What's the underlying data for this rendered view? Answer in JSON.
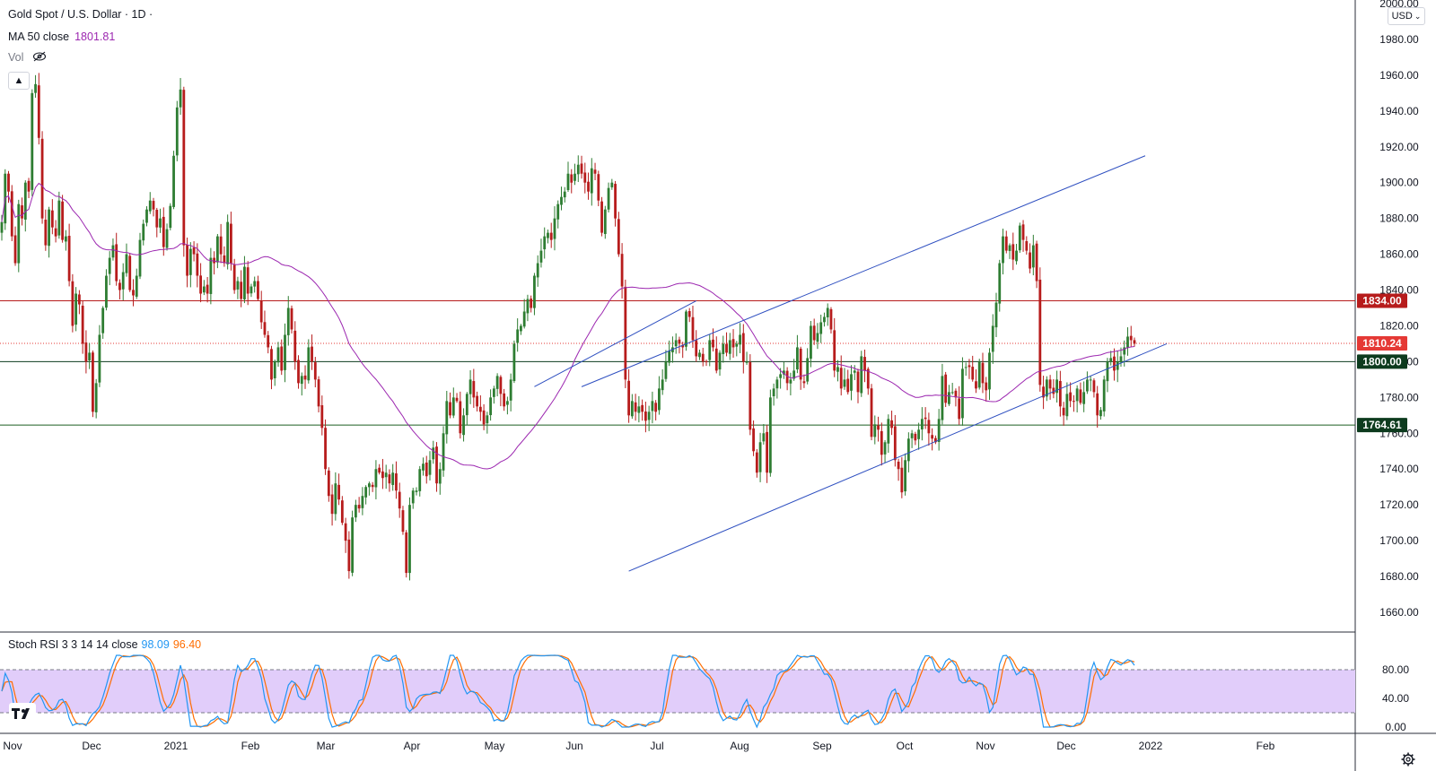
{
  "header": {
    "symbol_title": "Gold Spot / U.S. Dollar · 1D ·",
    "ma_label": "MA 50 close",
    "ma_value": "1801.81",
    "vol_label": "Vol",
    "collapse_icon": "chevron-up-icon",
    "hide_icon": "eye-crossed-icon"
  },
  "price_axis": {
    "currency": "USD",
    "ticks": [
      "2000.00",
      "1980.00",
      "1960.00",
      "1940.00",
      "1920.00",
      "1900.00",
      "1880.00",
      "1860.00",
      "1840.00",
      "1820.00",
      "1800.00",
      "1780.00",
      "1760.00",
      "1740.00",
      "1720.00",
      "1700.00",
      "1680.00",
      "1660.00"
    ],
    "badges": [
      {
        "label": "1834.00",
        "bg": "#b71c1c",
        "fg": "#ffffff"
      },
      {
        "label": "1810.24",
        "bg": "#e53935",
        "fg": "#ffffff"
      },
      {
        "label": "1800.00",
        "bg": "#0d3b1e",
        "fg": "#ffffff"
      },
      {
        "label": "1764.61",
        "bg": "#0d3b1e",
        "fg": "#ffffff"
      }
    ]
  },
  "time_axis": {
    "labels": [
      "Nov",
      "Dec",
      "2021",
      "Feb",
      "Mar",
      "Apr",
      "May",
      "Jun",
      "Jul",
      "Aug",
      "Sep",
      "Oct",
      "Nov",
      "Dec",
      "2022",
      "Feb"
    ]
  },
  "stoch_rsi": {
    "label": "Stoch RSI 3 3 14 14 close",
    "k_value": "98.09",
    "d_value": "96.40",
    "ticks": [
      "80.00",
      "40.00",
      "0.00"
    ],
    "k_color": "#2196f3",
    "d_color": "#ff6d00",
    "band_upper": 80,
    "band_lower": 20
  },
  "chart_data": {
    "type": "candlestick",
    "title": "Gold Spot / U.S. Dollar · 1D ·",
    "ylim": [
      1650,
      2000
    ],
    "up_color": "#2e7d32",
    "down_color": "#b71c1c",
    "ma_color": "#9c27b0",
    "trendline_color": "#2e4fc0",
    "closes": [
      1878,
      1905,
      1895,
      1870,
      1855,
      1888,
      1880,
      1900,
      1895,
      1950,
      1955,
      1925,
      1880,
      1865,
      1885,
      1875,
      1870,
      1890,
      1868,
      1870,
      1845,
      1820,
      1838,
      1832,
      1810,
      1800,
      1805,
      1772,
      1788,
      1815,
      1830,
      1848,
      1858,
      1865,
      1845,
      1840,
      1850,
      1860,
      1840,
      1837,
      1848,
      1868,
      1877,
      1885,
      1890,
      1885,
      1875,
      1880,
      1864,
      1874,
      1887,
      1915,
      1942,
      1952,
      1865,
      1848,
      1863,
      1860,
      1848,
      1838,
      1842,
      1838,
      1858,
      1855,
      1870,
      1860,
      1855,
      1878,
      1855,
      1840,
      1845,
      1835,
      1853,
      1838,
      1842,
      1845,
      1835,
      1822,
      1815,
      1808,
      1790,
      1800,
      1808,
      1795,
      1815,
      1830,
      1818,
      1800,
      1788,
      1792,
      1790,
      1808,
      1800,
      1790,
      1775,
      1763,
      1740,
      1725,
      1715,
      1732,
      1723,
      1710,
      1700,
      1683,
      1713,
      1720,
      1718,
      1725,
      1730,
      1732,
      1730,
      1740,
      1738,
      1735,
      1738,
      1732,
      1738,
      1728,
      1718,
      1705,
      1682,
      1720,
      1728,
      1728,
      1740,
      1743,
      1736,
      1745,
      1752,
      1732,
      1740,
      1760,
      1778,
      1770,
      1780,
      1778,
      1760,
      1770,
      1782,
      1790,
      1780,
      1775,
      1772,
      1765,
      1770,
      1780,
      1785,
      1792,
      1782,
      1775,
      1778,
      1790,
      1810,
      1818,
      1820,
      1828,
      1835,
      1830,
      1848,
      1855,
      1862,
      1870,
      1872,
      1868,
      1880,
      1888,
      1892,
      1895,
      1905,
      1900,
      1905,
      1910,
      1905,
      1900,
      1895,
      1908,
      1905,
      1890,
      1872,
      1885,
      1897,
      1900,
      1880,
      1860,
      1842,
      1790,
      1770,
      1778,
      1772,
      1775,
      1772,
      1767,
      1772,
      1778,
      1772,
      1785,
      1790,
      1800,
      1806,
      1808,
      1812,
      1810,
      1808,
      1828,
      1825,
      1812,
      1803,
      1805,
      1800,
      1800,
      1812,
      1808,
      1795,
      1805,
      1810,
      1805,
      1812,
      1808,
      1810,
      1815,
      1800,
      1800,
      1762,
      1750,
      1738,
      1755,
      1760,
      1738,
      1780,
      1785,
      1790,
      1793,
      1795,
      1788,
      1790,
      1795,
      1808,
      1790,
      1788,
      1802,
      1820,
      1812,
      1816,
      1822,
      1825,
      1830,
      1818,
      1795,
      1797,
      1785,
      1790,
      1783,
      1793,
      1795,
      1783,
      1803,
      1795,
      1785,
      1758,
      1765,
      1762,
      1748,
      1755,
      1768,
      1763,
      1745,
      1740,
      1727,
      1745,
      1757,
      1760,
      1756,
      1762,
      1768,
      1768,
      1760,
      1757,
      1755,
      1768,
      1792,
      1777,
      1783,
      1783,
      1780,
      1768,
      1796,
      1797,
      1797,
      1790,
      1785,
      1800,
      1788,
      1784,
      1805,
      1820,
      1833,
      1855,
      1870,
      1862,
      1865,
      1857,
      1862,
      1876,
      1868,
      1862,
      1852,
      1865,
      1845,
      1787,
      1780,
      1790,
      1785,
      1782,
      1790,
      1775,
      1770,
      1782,
      1778,
      1778,
      1785,
      1777,
      1783,
      1790,
      1790,
      1783,
      1770,
      1773,
      1790,
      1800,
      1802,
      1795,
      1800,
      1803,
      1808,
      1814,
      1812,
      1810
    ]
  }
}
